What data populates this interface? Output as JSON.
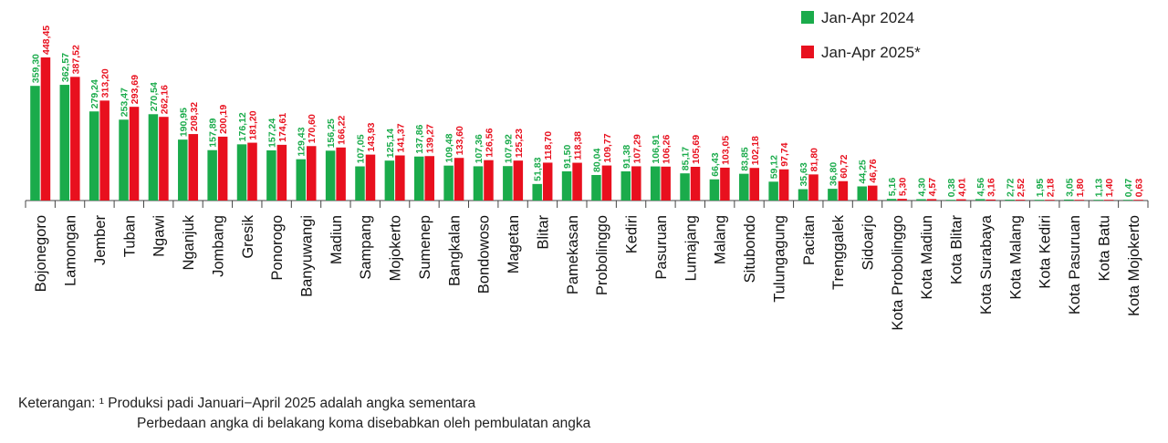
{
  "chart_data": {
    "type": "bar",
    "categories": [
      "Bojonegoro",
      "Lamongan",
      "Jember",
      "Tuban",
      "Ngawi",
      "Nganjuk",
      "Jombang",
      "Gresik",
      "Ponorogo",
      "Banyuwangi",
      "Madiun",
      "Sampang",
      "Mojokerto",
      "Sumenep",
      "Bangkalan",
      "Bondowoso",
      "Magetan",
      "Blitar",
      "Pamekasan",
      "Probolinggo",
      "Kediri",
      "Pasuruan",
      "Lumajang",
      "Malang",
      "Situbondo",
      "Tulungagung",
      "Pacitan",
      "Trenggalek",
      "Sidoarjo",
      "Kota Probolinggo",
      "Kota Madiun",
      "Kota Blitar",
      "Kota Surabaya",
      "Kota Malang",
      "Kota Kediri",
      "Kota Pasuruan",
      "Kota Batu",
      "Kota Mojokerto"
    ],
    "series": [
      {
        "name": "Jan-Apr 2024",
        "color": "#1aab4b",
        "values": [
          359.3,
          362.57,
          279.24,
          253.47,
          270.54,
          190.95,
          157.89,
          176.12,
          157.24,
          129.43,
          156.25,
          107.05,
          125.14,
          137.86,
          109.48,
          107.36,
          107.92,
          51.83,
          91.5,
          80.04,
          91.38,
          106.91,
          85.17,
          66.43,
          83.85,
          59.12,
          35.63,
          36.8,
          44.25,
          5.16,
          4.3,
          0.38,
          4.56,
          2.72,
          1.95,
          3.05,
          1.13,
          0.47
        ],
        "labels": [
          "359,30",
          "362,57",
          "279,24",
          "253,47",
          "270,54",
          "190,95",
          "157,89",
          "176,12",
          "157,24",
          "129,43",
          "156,25",
          "107,05",
          "125,14",
          "137,86",
          "109,48",
          "107,36",
          "107,92",
          "51,83",
          "91,50",
          "80,04",
          "91,38",
          "106,91",
          "85,17",
          "66,43",
          "83,85",
          "59,12",
          "35,63",
          "36,80",
          "44,25",
          "5,16",
          "4,30",
          "0,38",
          "4,56",
          "2,72",
          "1,95",
          "3,05",
          "1,13",
          "0,47"
        ]
      },
      {
        "name": "Jan-Apr 2025*",
        "color": "#e8101e",
        "values": [
          448.45,
          387.52,
          313.2,
          293.69,
          262.16,
          208.32,
          200.19,
          181.2,
          174.61,
          170.6,
          166.22,
          143.93,
          141.37,
          139.27,
          133.6,
          126.56,
          125.23,
          118.7,
          118.38,
          109.77,
          107.29,
          106.26,
          105.69,
          103.05,
          102.18,
          97.74,
          81.8,
          60.72,
          46.76,
          5.3,
          4.57,
          4.01,
          3.16,
          2.52,
          2.18,
          1.8,
          1.4,
          0.63
        ],
        "labels": [
          "448,45",
          "387,52",
          "313,20",
          "293,69",
          "262,16",
          "208,32",
          "200,19",
          "181,20",
          "174,61",
          "170,60",
          "166,22",
          "143,93",
          "141,37",
          "139,27",
          "133,60",
          "126,56",
          "125,23",
          "118,70",
          "118,38",
          "109,77",
          "107,29",
          "106,26",
          "105,69",
          "103,05",
          "102,18",
          "97,74",
          "81,80",
          "60,72",
          "46,76",
          "5,30",
          "4,57",
          "4,01",
          "3,16",
          "2,52",
          "2,18",
          "1,80",
          "1,40",
          "0,63"
        ]
      }
    ],
    "grid": false,
    "legend_position": "top-right"
  },
  "notes": {
    "line1": "Keterangan: ¹ Produksi padi Januari−April 2025 adalah angka sementara",
    "line2": "Perbedaan angka di belakang koma disebabkan oleh pembulatan angka"
  }
}
